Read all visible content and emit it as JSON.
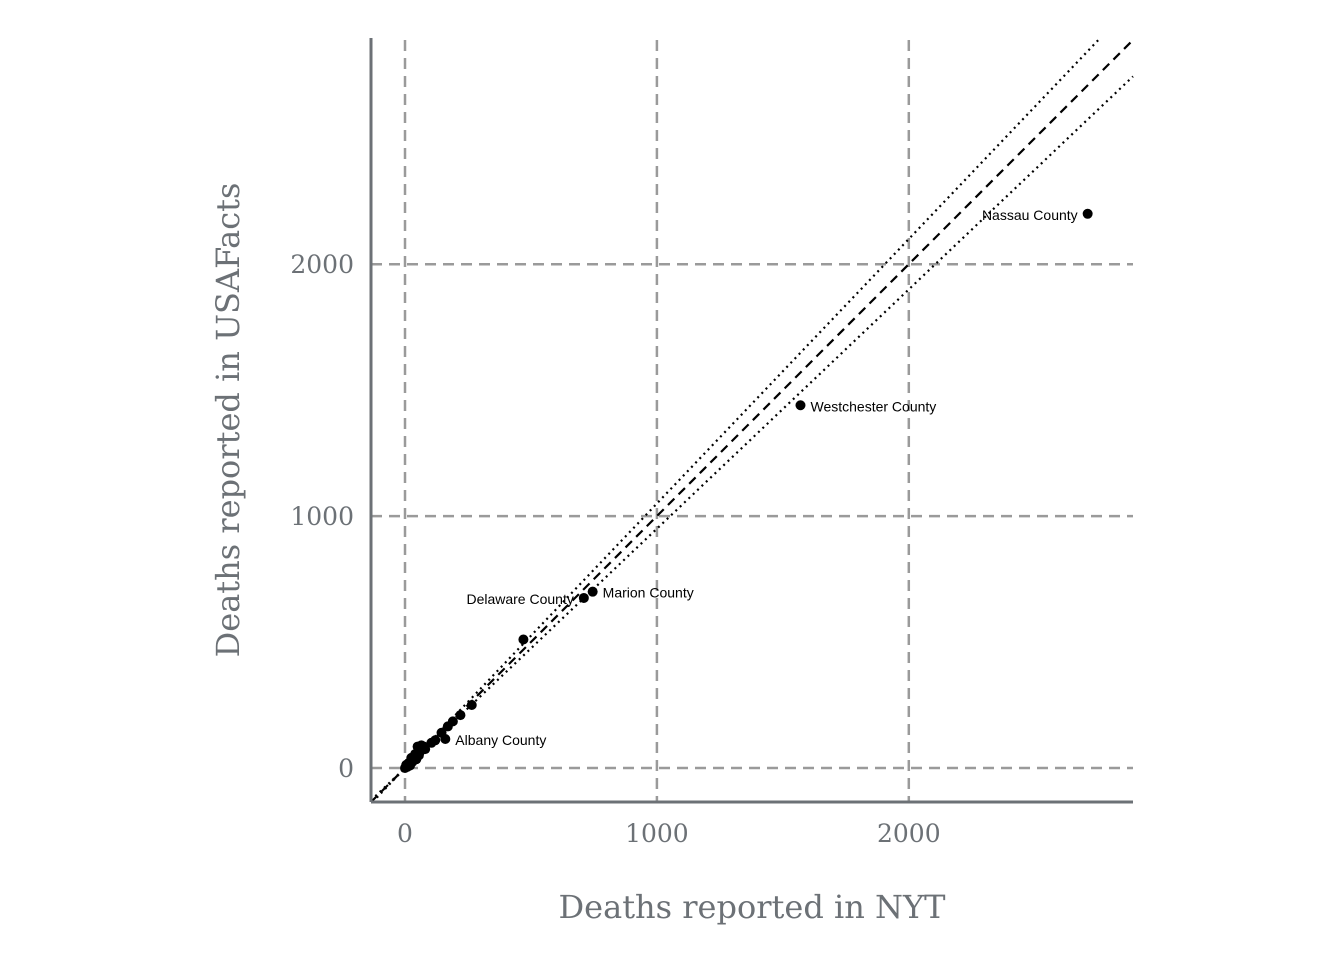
{
  "chart_data": {
    "type": "scatter",
    "title": "",
    "xlabel": "Deaths reported in NYT",
    "ylabel": "Deaths reported in USAFacts",
    "xlim": [
      -135,
      2890
    ],
    "ylim": [
      -135,
      2890
    ],
    "x_ticks": [
      0,
      1000,
      2000
    ],
    "y_ticks": [
      0,
      1000,
      2000
    ],
    "x_tick_labels": [
      "0",
      "1000",
      "2000"
    ],
    "y_tick_labels": [
      "0",
      "1000",
      "2000"
    ],
    "grid": true,
    "reference_lines": [
      {
        "style": "dashed",
        "slope": 1.0
      },
      {
        "style": "dotted",
        "slope": 1.05
      },
      {
        "style": "dotted",
        "slope": 0.95
      }
    ],
    "points": [
      {
        "x": 2710,
        "y": 2200,
        "label": "Nassau County"
      },
      {
        "x": 1570,
        "y": 1440,
        "label": "Westchester County"
      },
      {
        "x": 745,
        "y": 700,
        "label": "Marion County"
      },
      {
        "x": 710,
        "y": 675,
        "label": "Delaware County"
      },
      {
        "x": 470,
        "y": 510,
        "label": ""
      },
      {
        "x": 265,
        "y": 250,
        "label": ""
      },
      {
        "x": 220,
        "y": 210,
        "label": ""
      },
      {
        "x": 190,
        "y": 185,
        "label": ""
      },
      {
        "x": 170,
        "y": 165,
        "label": ""
      },
      {
        "x": 160,
        "y": 115,
        "label": "Albany County"
      },
      {
        "x": 145,
        "y": 140,
        "label": ""
      },
      {
        "x": 120,
        "y": 110,
        "label": ""
      },
      {
        "x": 105,
        "y": 100,
        "label": ""
      },
      {
        "x": 80,
        "y": 75,
        "label": ""
      },
      {
        "x": 75,
        "y": 85,
        "label": ""
      },
      {
        "x": 65,
        "y": 90,
        "label": ""
      },
      {
        "x": 60,
        "y": 65,
        "label": ""
      },
      {
        "x": 55,
        "y": 50,
        "label": ""
      },
      {
        "x": 50,
        "y": 85,
        "label": ""
      },
      {
        "x": 45,
        "y": 35,
        "label": ""
      },
      {
        "x": 40,
        "y": 55,
        "label": ""
      },
      {
        "x": 30,
        "y": 25,
        "label": ""
      },
      {
        "x": 25,
        "y": 40,
        "label": ""
      },
      {
        "x": 20,
        "y": 10,
        "label": ""
      },
      {
        "x": 15,
        "y": 20,
        "label": ""
      },
      {
        "x": 10,
        "y": 5,
        "label": ""
      },
      {
        "x": 5,
        "y": 12,
        "label": ""
      },
      {
        "x": 0,
        "y": 0,
        "label": ""
      }
    ]
  }
}
